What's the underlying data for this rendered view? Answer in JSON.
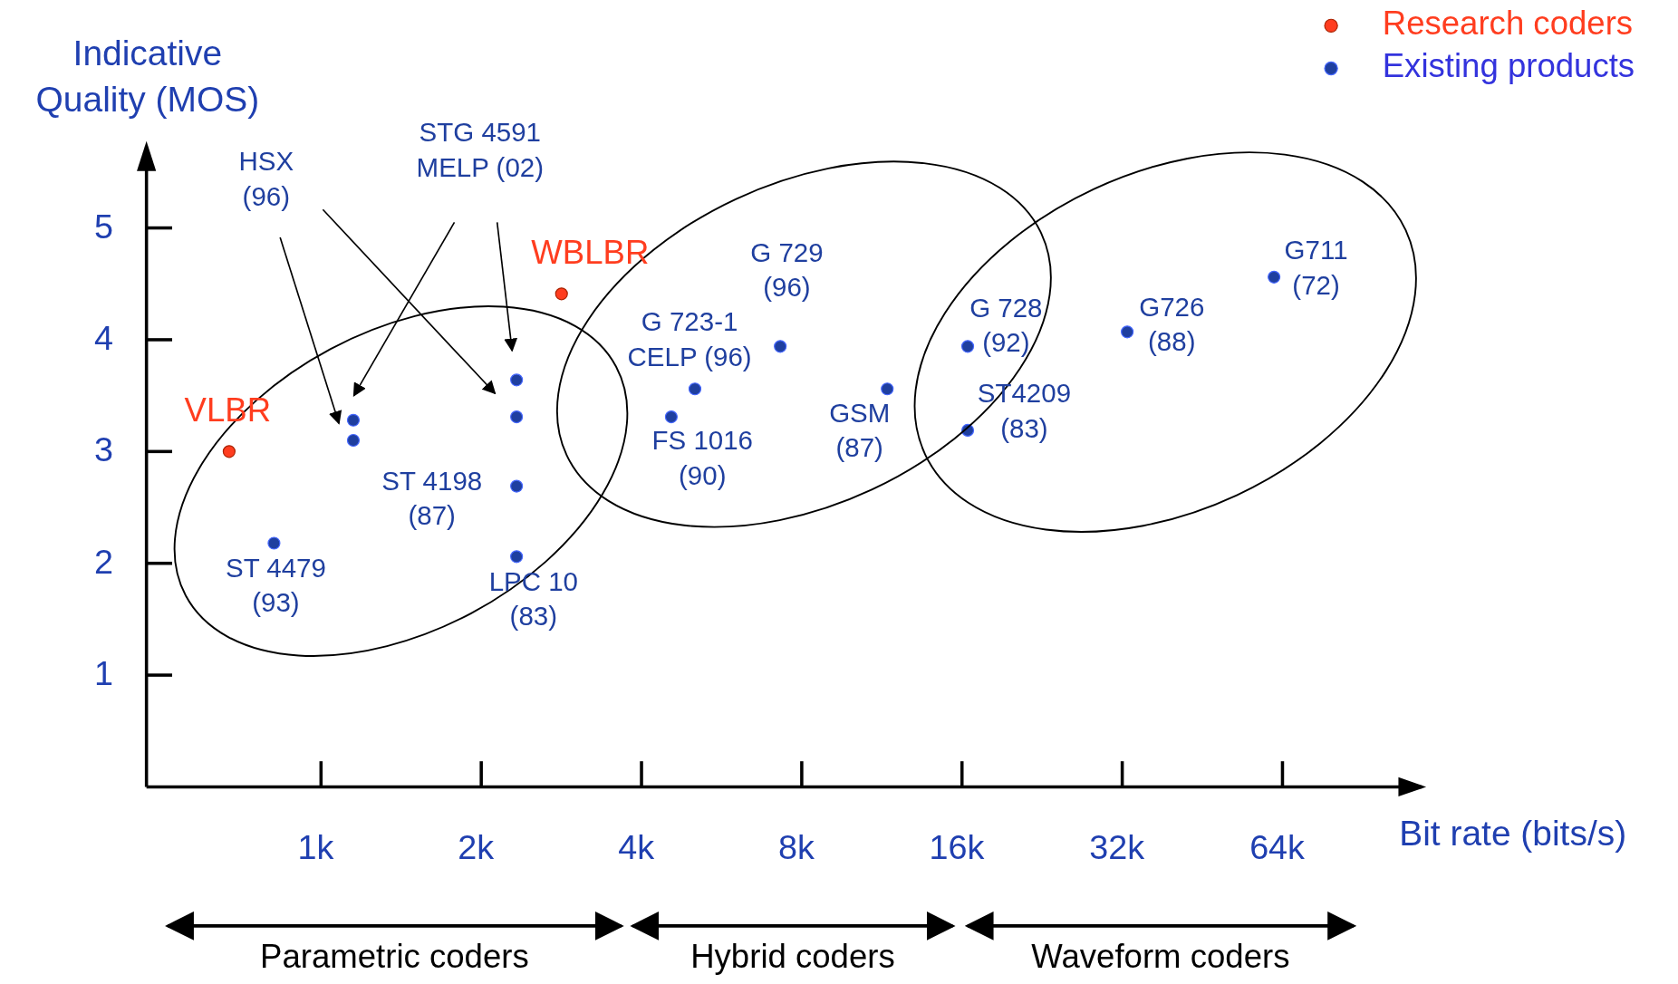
{
  "chart_data": {
    "type": "scatter",
    "xlabel": "Bit rate (bits/s)",
    "ylabel": "Indicative\nQuality  (MOS)",
    "log": "x",
    "xlim": [
      470,
      117000
    ],
    "ylim": [
      0,
      5.7
    ],
    "xticks": [
      {
        "value": 1000,
        "label": "1k"
      },
      {
        "value": 2000,
        "label": "2k"
      },
      {
        "value": 4000,
        "label": "4k"
      },
      {
        "value": 8000,
        "label": "8k"
      },
      {
        "value": 16000,
        "label": "16k"
      },
      {
        "value": 32000,
        "label": "32k"
      },
      {
        "value": 64000,
        "label": "64k"
      }
    ],
    "yticks": [
      1,
      2,
      3,
      4,
      5
    ],
    "marker": "circle",
    "legend": "top right",
    "series": [
      {
        "name": "Research coders",
        "color": "#ff3d1f",
        "x": [
          672,
          2830
        ],
        "values": [
          3.0,
          4.41
        ]
      },
      {
        "name": "Existing products",
        "color": "#1f3f9f",
        "x": [
          816,
          1150,
          1150,
          2330,
          2330,
          2330,
          2330,
          4550,
          5040,
          7290,
          11580,
          16400,
          16400,
          32700,
          61700
        ],
        "values": [
          2.18,
          3.28,
          3.1,
          3.64,
          3.31,
          2.69,
          2.06,
          3.31,
          3.56,
          3.94,
          3.56,
          3.94,
          3.19,
          4.07,
          4.56
        ]
      }
    ],
    "annotations": [
      "VLBR",
      "WBLBR",
      "HSX\n(96)",
      "STG 4591\nMELP (02)",
      "ST 4198\n(87)",
      "ST 4479\n(93)",
      "LPC 10\n(83)",
      "G 723-1\nCELP (96)",
      "FS 1016\n(90)",
      "G 729\n(96)",
      "GSM\n(87)",
      "G 728\n(92)",
      "ST4209\n(83)",
      "G726\n(88)",
      "G711\n(72)",
      "Parametric coders",
      "Hybrid coders",
      "Waveform coders"
    ]
  }
}
